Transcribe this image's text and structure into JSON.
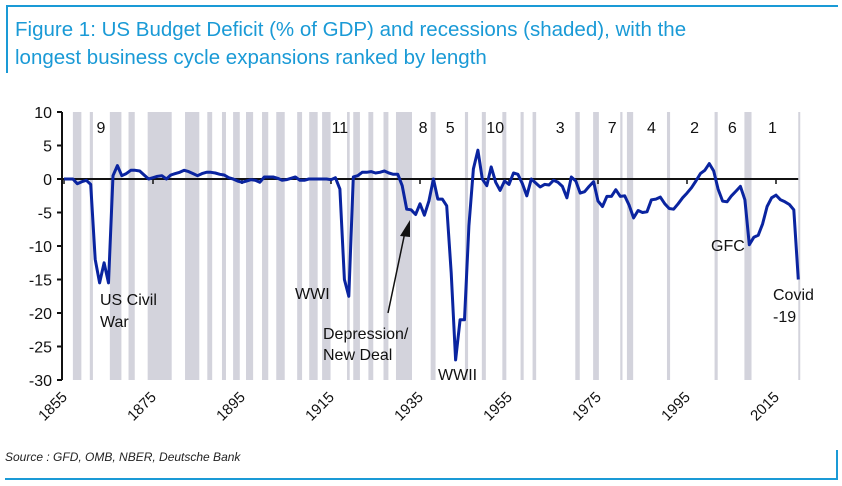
{
  "title_line1": "Figure 1: US Budget Deficit (% of GDP) and recessions (shaded), with the",
  "title_line2": "longest business cycle expansions ranked by length",
  "source": "Source : GFD, OMB, NBER, Deutsche Bank",
  "colors": {
    "title": "#1a9ad6",
    "line": "#0a24a0",
    "recession": "#d3d3dc"
  },
  "chart_data": {
    "type": "line",
    "title": "US Budget Deficit (% of GDP) and recessions (shaded)",
    "xlabel": "",
    "ylabel": "",
    "xlim": [
      1855,
      2020
    ],
    "ylim": [
      -30,
      10
    ],
    "yticks": [
      10,
      5,
      0,
      -5,
      -10,
      -15,
      -20,
      -25,
      -30
    ],
    "xticks": [
      1855,
      1875,
      1895,
      1915,
      1935,
      1955,
      1975,
      1995,
      2015
    ],
    "series": [
      {
        "name": "US Budget Deficit (% of GDP)",
        "points": [
          [
            1855,
            0
          ],
          [
            1856,
            0
          ],
          [
            1857,
            0
          ],
          [
            1858,
            -0.7
          ],
          [
            1859,
            -0.4
          ],
          [
            1860,
            -0.2
          ],
          [
            1861,
            -0.8
          ],
          [
            1862,
            -12
          ],
          [
            1863,
            -15.5
          ],
          [
            1864,
            -12.5
          ],
          [
            1865,
            -15.5
          ],
          [
            1866,
            0.5
          ],
          [
            1867,
            2
          ],
          [
            1868,
            0.5
          ],
          [
            1869,
            0.8
          ],
          [
            1870,
            1.3
          ],
          [
            1871,
            1.3
          ],
          [
            1872,
            1.2
          ],
          [
            1873,
            0.6
          ],
          [
            1874,
            0
          ],
          [
            1875,
            0.2
          ],
          [
            1876,
            0.4
          ],
          [
            1877,
            0.5
          ],
          [
            1878,
            0
          ],
          [
            1879,
            0.6
          ],
          [
            1880,
            0.8
          ],
          [
            1881,
            1.0
          ],
          [
            1882,
            1.3
          ],
          [
            1883,
            1.1
          ],
          [
            1884,
            0.8
          ],
          [
            1885,
            0.5
          ],
          [
            1886,
            0.8
          ],
          [
            1887,
            1.0
          ],
          [
            1888,
            1.0
          ],
          [
            1889,
            0.9
          ],
          [
            1890,
            0.7
          ],
          [
            1891,
            0.6
          ],
          [
            1892,
            0.2
          ],
          [
            1893,
            0
          ],
          [
            1894,
            -0.3
          ],
          [
            1895,
            -0.5
          ],
          [
            1896,
            -0.3
          ],
          [
            1897,
            -0.1
          ],
          [
            1898,
            -0.2
          ],
          [
            1899,
            -0.5
          ],
          [
            1900,
            0.3
          ],
          [
            1901,
            0.3
          ],
          [
            1902,
            0.3
          ],
          [
            1903,
            0.1
          ],
          [
            1904,
            -0.2
          ],
          [
            1905,
            -0.1
          ],
          [
            1906,
            0.1
          ],
          [
            1907,
            0.3
          ],
          [
            1908,
            -0.2
          ],
          [
            1909,
            -0.2
          ],
          [
            1910,
            0
          ],
          [
            1911,
            0
          ],
          [
            1912,
            0
          ],
          [
            1913,
            0
          ],
          [
            1914,
            0
          ],
          [
            1915,
            -0.1
          ],
          [
            1916,
            0.2
          ],
          [
            1917,
            -1.5
          ],
          [
            1918,
            -15
          ],
          [
            1919,
            -17.5
          ],
          [
            1920,
            0.3
          ],
          [
            1921,
            0.5
          ],
          [
            1922,
            1
          ],
          [
            1923,
            1
          ],
          [
            1924,
            1.1
          ],
          [
            1925,
            0.9
          ],
          [
            1926,
            1
          ],
          [
            1927,
            1.2
          ],
          [
            1928,
            0.9
          ],
          [
            1929,
            0.7
          ],
          [
            1930,
            0.7
          ],
          [
            1931,
            -1
          ],
          [
            1932,
            -4.5
          ],
          [
            1933,
            -4.6
          ],
          [
            1934,
            -5.3
          ],
          [
            1935,
            -3.7
          ],
          [
            1936,
            -5.4
          ],
          [
            1937,
            -3.3
          ],
          [
            1938,
            0
          ],
          [
            1939,
            -3
          ],
          [
            1940,
            -3
          ],
          [
            1941,
            -4
          ],
          [
            1942,
            -14
          ],
          [
            1943,
            -27
          ],
          [
            1944,
            -21
          ],
          [
            1945,
            -21
          ],
          [
            1946,
            -7
          ],
          [
            1947,
            1.5
          ],
          [
            1948,
            4.3
          ],
          [
            1949,
            0
          ],
          [
            1950,
            -1
          ],
          [
            1951,
            1.8
          ],
          [
            1952,
            -0.5
          ],
          [
            1953,
            -1.7
          ],
          [
            1954,
            -0.3
          ],
          [
            1955,
            -0.8
          ],
          [
            1956,
            0.9
          ],
          [
            1957,
            0.7
          ],
          [
            1958,
            -0.7
          ],
          [
            1959,
            -2.5
          ],
          [
            1960,
            0
          ],
          [
            1961,
            -0.6
          ],
          [
            1962,
            -1.2
          ],
          [
            1963,
            -0.8
          ],
          [
            1964,
            -0.9
          ],
          [
            1965,
            -0.2
          ],
          [
            1966,
            -0.5
          ],
          [
            1967,
            -1.1
          ],
          [
            1968,
            -2.8
          ],
          [
            1969,
            0.3
          ],
          [
            1970,
            -0.3
          ],
          [
            1971,
            -2.1
          ],
          [
            1972,
            -1.9
          ],
          [
            1973,
            -1.1
          ],
          [
            1974,
            -0.4
          ],
          [
            1975,
            -3.3
          ],
          [
            1976,
            -4.1
          ],
          [
            1977,
            -2.6
          ],
          [
            1978,
            -2.6
          ],
          [
            1979,
            -1.6
          ],
          [
            1980,
            -2.6
          ],
          [
            1981,
            -2.5
          ],
          [
            1982,
            -3.9
          ],
          [
            1983,
            -5.8
          ],
          [
            1984,
            -4.7
          ],
          [
            1985,
            -5
          ],
          [
            1986,
            -4.9
          ],
          [
            1987,
            -3.1
          ],
          [
            1988,
            -3
          ],
          [
            1989,
            -2.7
          ],
          [
            1990,
            -3.7
          ],
          [
            1991,
            -4.4
          ],
          [
            1992,
            -4.5
          ],
          [
            1993,
            -3.7
          ],
          [
            1994,
            -2.8
          ],
          [
            1995,
            -2.1
          ],
          [
            1996,
            -1.3
          ],
          [
            1997,
            -0.3
          ],
          [
            1998,
            0.8
          ],
          [
            1999,
            1.3
          ],
          [
            2000,
            2.3
          ],
          [
            2001,
            1.2
          ],
          [
            2002,
            -1.5
          ],
          [
            2003,
            -3.3
          ],
          [
            2004,
            -3.4
          ],
          [
            2005,
            -2.5
          ],
          [
            2006,
            -1.8
          ],
          [
            2007,
            -1.1
          ],
          [
            2008,
            -3.1
          ],
          [
            2009,
            -9.8
          ],
          [
            2010,
            -8.7
          ],
          [
            2011,
            -8.4
          ],
          [
            2012,
            -6.7
          ],
          [
            2013,
            -4.1
          ],
          [
            2014,
            -2.8
          ],
          [
            2015,
            -2.4
          ],
          [
            2016,
            -3.1
          ],
          [
            2017,
            -3.4
          ],
          [
            2018,
            -3.8
          ],
          [
            2019,
            -4.6
          ],
          [
            2020,
            -15
          ]
        ]
      }
    ],
    "recessions": [
      [
        1857,
        1858.9
      ],
      [
        1860.8,
        1861.5
      ],
      [
        1865.3,
        1867.9
      ],
      [
        1869.5,
        1870.9
      ],
      [
        1873.8,
        1879.2
      ],
      [
        1882.2,
        1885.4
      ],
      [
        1887.2,
        1888.3
      ],
      [
        1890.5,
        1891.4
      ],
      [
        1893,
        1894.5
      ],
      [
        1895.9,
        1897.5
      ],
      [
        1899.5,
        1900.9
      ],
      [
        1902.7,
        1904.6
      ],
      [
        1907.4,
        1908.5
      ],
      [
        1910.1,
        1912
      ],
      [
        1913,
        1914.9
      ],
      [
        1918.6,
        1919.2
      ],
      [
        1920,
        1921.5
      ],
      [
        1923.4,
        1924.5
      ],
      [
        1926.8,
        1927.9
      ],
      [
        1929.6,
        1933.2
      ],
      [
        1937.4,
        1938.5
      ],
      [
        1945.1,
        1945.8
      ],
      [
        1948.9,
        1949.8
      ],
      [
        1953.5,
        1954.4
      ],
      [
        1957.6,
        1958.3
      ],
      [
        1960.3,
        1961.1
      ],
      [
        1969.9,
        1970.9
      ],
      [
        1973.9,
        1975.2
      ],
      [
        1980,
        1980.5
      ],
      [
        1981.5,
        1982.9
      ],
      [
        1990.5,
        1991.2
      ],
      [
        2001.2,
        2001.9
      ],
      [
        2007.9,
        2009.5
      ],
      [
        2020,
        2020.4
      ]
    ],
    "expansion_ranks": [
      {
        "label": "9",
        "year": 1863.3
      },
      {
        "label": "11",
        "year": 1917
      },
      {
        "label": "8",
        "year": 1935.7
      },
      {
        "label": "5",
        "year": 1941.8
      },
      {
        "label": "10",
        "year": 1951.9
      },
      {
        "label": "3",
        "year": 1966.5
      },
      {
        "label": "7",
        "year": 1978.2
      },
      {
        "label": "4",
        "year": 1987
      },
      {
        "label": "2",
        "year": 1996.7
      },
      {
        "label": "6",
        "year": 2005.2
      },
      {
        "label": "1",
        "year": 2014.2
      }
    ],
    "annotations": {
      "civil_war_1": "US Civil",
      "civil_war_2": "War",
      "wwi": "WWI",
      "depression_1": "Depression/",
      "depression_2": "New Deal",
      "wwii": "WWII",
      "gfc": "GFC",
      "covid_1": "Covid",
      "covid_2": "-19"
    }
  }
}
